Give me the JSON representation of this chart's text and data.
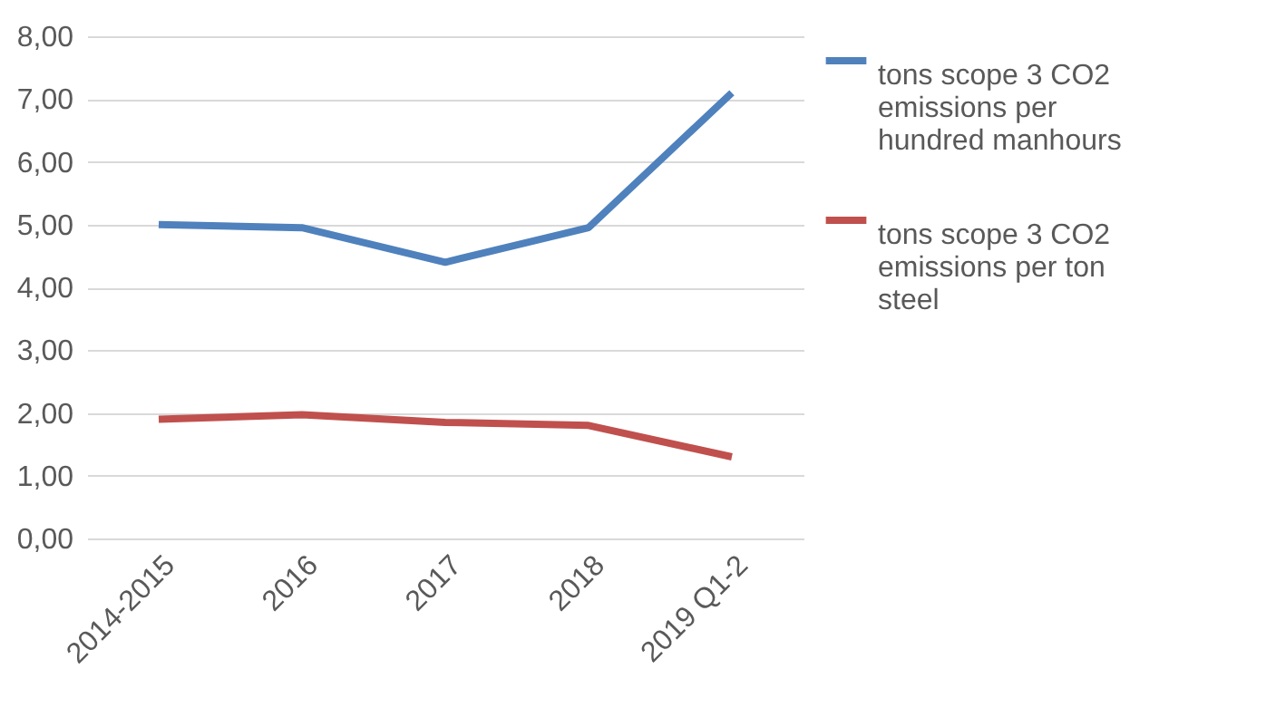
{
  "chart_data": {
    "type": "line",
    "categories": [
      "2014-2015",
      "2016",
      "2017",
      "2018",
      "2019 Q1-2"
    ],
    "series": [
      {
        "name": "tons scope 3 CO2 emissions per hundred manhours",
        "color": "#4f81bd",
        "values": [
          5.0,
          4.95,
          4.4,
          4.95,
          7.1
        ]
      },
      {
        "name": "tons scope 3 CO2 emissions per ton steel",
        "color": "#c0504d",
        "values": [
          1.9,
          1.97,
          1.85,
          1.8,
          1.3
        ]
      }
    ],
    "ylim": [
      0,
      8
    ],
    "yticks": [
      {
        "value": 0,
        "label": "0,00"
      },
      {
        "value": 1,
        "label": "1,00"
      },
      {
        "value": 2,
        "label": "2,00"
      },
      {
        "value": 3,
        "label": "3,00"
      },
      {
        "value": 4,
        "label": "4,00"
      },
      {
        "value": 5,
        "label": "5,00"
      },
      {
        "value": 6,
        "label": "6,00"
      },
      {
        "value": 7,
        "label": "7,00"
      },
      {
        "value": 8,
        "label": "8,00"
      }
    ],
    "grid": "y",
    "legend": "right",
    "marker": "none",
    "line_style": "solid"
  }
}
